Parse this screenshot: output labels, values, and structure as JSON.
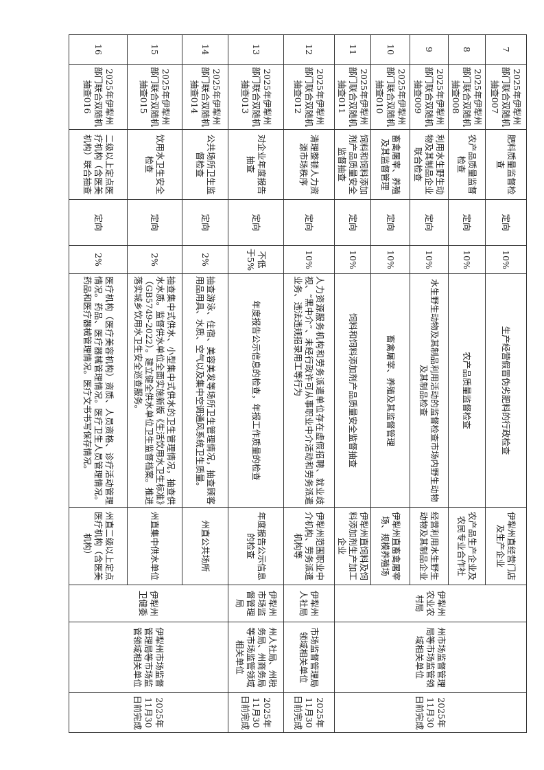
{
  "table": {
    "rows": [
      {
        "no": "7",
        "task": "2025年伊犁州部门联合双随机抽查007",
        "item": "肥料质量监督检查",
        "method": "定向",
        "ratio": "10%",
        "content": "生产经营假冒伪劣肥料的行政检查",
        "object": "伊犁州直经营门店及生产企业"
      },
      {
        "no": "8",
        "task": "2025年伊犁州部门联合双随机抽查008",
        "item": "农产品质量监督检查",
        "method": "定向",
        "ratio": "10%",
        "content": "农产品质量监督检查",
        "object": "农产品生产企业及农民专业合作社"
      },
      {
        "no": "9",
        "task": "2025年伊犁州部门联合双随机抽查009",
        "item": "利用水生野生动物及其制品企业联合检查",
        "method": "定向",
        "ratio": "10%",
        "content": "水生野生动物及其制品利用活动的监督检查市场内野生动物及其制品检查",
        "object": "经营利用水生野生动物及其制品企业"
      },
      {
        "no": "10",
        "task": "2025年伊犁州部门联合双随机抽查010",
        "item": "畜禽屠宰、养殖及其监督管理",
        "method": "定向",
        "ratio": "10%",
        "content": "畜禽屠宰、养殖及其监督管理",
        "object": "伊犁州直畜禽屠宰场、规模养殖场"
      },
      {
        "no": "11",
        "task": "2025年伊犁州部门联合双随机抽查011",
        "item": "饲料和饲料添加剂产品质量安全监督抽查",
        "method": "定向",
        "ratio": "10%",
        "content": "饲料和饲料添加剂产品质量安全监督抽查",
        "object": "伊犁州直饲料及饲料添加剂生产加工企业"
      },
      {
        "no": "12",
        "task": "2025年伊犁州部门联合双随机抽查012",
        "item": "清理整顿人力资源市场秩序",
        "method": "定向",
        "ratio": "10%",
        "content": "人力资源服务机构和劳务派遣单位存在虚假招聘、就业歧视、“黑中介”、未经行政许可从事职业中介活动和劳务派遣业务、违法违规招录用工等行为",
        "object": "伊犁州范围职业中介机构、劳务派遣机构等"
      },
      {
        "no": "13",
        "task": "2025年伊犁州部门联合双随机抽查013",
        "item": "对企业年度报告抽查",
        "method": "定向",
        "ratio": "不低于5%",
        "content": "年度报告公示信息的检查，年报工作质量的检查",
        "object": "年度报告公示信息的检查"
      },
      {
        "no": "14",
        "task": "2025年伊犁州部门联合双随机抽查014",
        "item": "公共场所卫生监督检查",
        "method": "定向",
        "ratio": "2%",
        "content": "抽查游泳、住宿、美容美发等场所卫生管理情况，抽查顾客用品用具、水质、空气以及集中空调通风系统卫生质量。",
        "object": "州直公共场所"
      },
      {
        "no": "15",
        "task": "2025年伊犁州部门联合双随机抽查015",
        "item": "饮用水卫生安全检查",
        "method": "定向",
        "ratio": "2%",
        "content": "抽查集中式供水、小型集中式供水的卫生管理情况，抽查供水水质。监督供水单位全面实施新版《生活饮用水卫生标准》（GB5749-2022）。建立健全供水单位卫生监督档案。推进落实城乡饮用水卫生安全巡查服务。",
        "object": "州直集中供水单位"
      },
      {
        "no": "16",
        "task": "2025年伊犁州部门联合双随机抽查016",
        "item": "二级以上定点医疗机构（含医美机构）联合抽查",
        "method": "定向",
        "ratio": "2%",
        "content": "医疗机构（医疗美容机构）资质、人员资格、诊疗活动管理情况。药品、医疗器械管理情况。医疗卫生人员管理情况。药品和医疗器械管理情况。医疗文书书写保存情况。",
        "object": "州直二级以上定点医疗机构（含医美机构）"
      }
    ],
    "departments": [
      "伊犁州农业农村局",
      "伊犁州人社局",
      "伊犁州市场监督管理局",
      "伊犁州卫健委"
    ],
    "cooperating": [
      "州市场监督管理局等市场监管领域相关单位",
      "市场监督管理局领域相关单位",
      "州人社局、州税务局、州商务局等市场监管领域相关单位",
      "伊犁州市场监督管理局等市场监管领域相关单位"
    ],
    "deadlines": [
      "2025年11月30日前完成",
      "2025年11月30日前完成",
      "2025年11月30日前完成",
      "2025年11月30日前完成"
    ]
  }
}
